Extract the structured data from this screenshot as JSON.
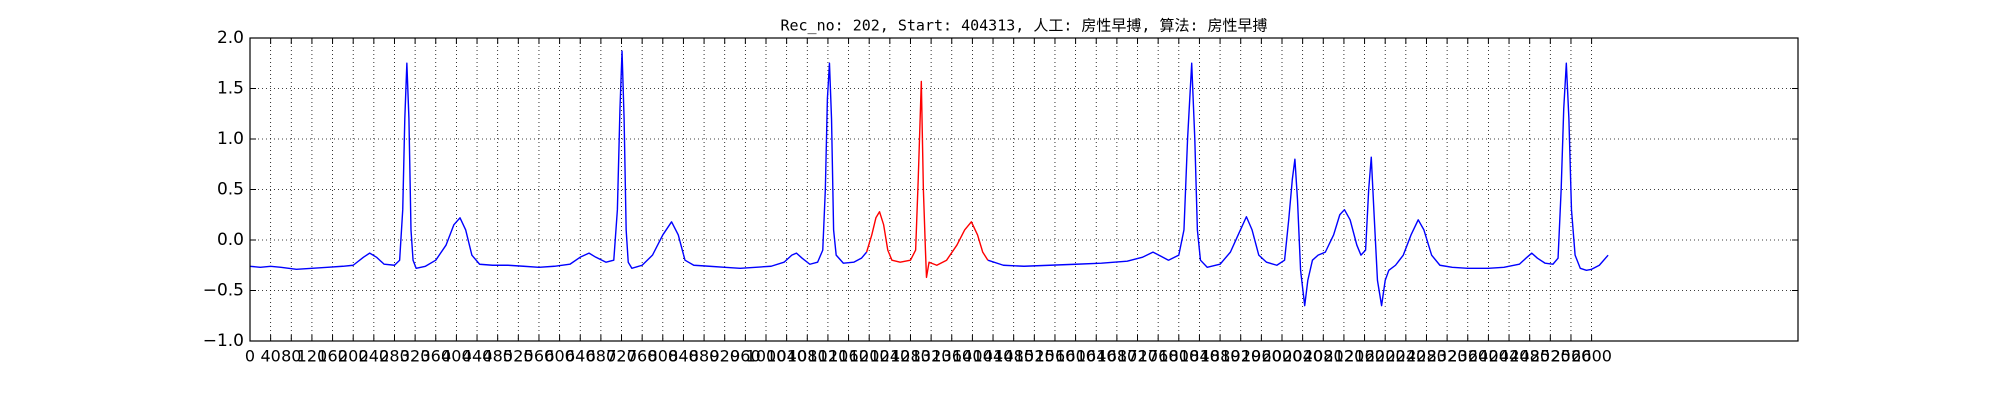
{
  "chart_data": {
    "type": "line",
    "title": "Rec_no: 202, Start: 404313, 人工: 房性早搏, 算法: 房性早搏",
    "xlim": [
      0,
      3000
    ],
    "ylim": [
      -1,
      2
    ],
    "xticks": [
      0,
      40,
      80,
      120,
      160,
      200,
      240,
      280,
      320,
      360,
      400,
      440,
      480,
      520,
      560,
      600,
      640,
      680,
      720,
      760,
      800,
      840,
      880,
      920,
      960,
      1000,
      1040,
      1080,
      1120,
      1160,
      1200,
      1240,
      1280,
      1320,
      1360,
      1400,
      1440,
      1480,
      1520,
      1560,
      1600,
      1640,
      1680,
      1720,
      1760,
      1800,
      1840,
      1880,
      1920,
      1960,
      2000,
      2040,
      2080,
      2120,
      2160,
      2200,
      2240,
      2280,
      2320,
      2360,
      2400,
      2440,
      2480,
      2520,
      2560,
      2600
    ],
    "yticks": [
      {
        "value": -1,
        "label": "−1.0"
      },
      {
        "value": -0.5,
        "label": "−0.5"
      },
      {
        "value": 0,
        "label": "0.0"
      },
      0.5,
      {
        "value": 1,
        "label": "1.0"
      },
      1.5,
      {
        "value": 2,
        "label": "2.0"
      }
    ],
    "grid": true,
    "series": [
      {
        "color": "#0000ff",
        "x": [
          0,
          20,
          40,
          60,
          90,
          120,
          150,
          180,
          200,
          220,
          232,
          245,
          260,
          280,
          290,
          296,
          300,
          304,
          308,
          312,
          316,
          322,
          340,
          360,
          380,
          395,
          407,
          418,
          430,
          445,
          470,
          500,
          530,
          560,
          590,
          620,
          640,
          657,
          670,
          690,
          705,
          712,
          717,
          721,
          725,
          729,
          733,
          740,
          760,
          780,
          800,
          817,
          830,
          843,
          860,
          890,
          920,
          950,
          980,
          1010,
          1035,
          1050,
          1059,
          1070,
          1085,
          1100,
          1110,
          1115,
          1119,
          1123,
          1127,
          1131,
          1136,
          1150,
          1170,
          1185,
          1195,
          1300,
          1430,
          1460,
          1500,
          1550,
          1600,
          1650,
          1700,
          1730,
          1750,
          1765,
          1780,
          1800,
          1810,
          1817,
          1825,
          1831,
          1836,
          1842,
          1855,
          1880,
          1900,
          1915,
          1931,
          1942,
          1955,
          1970,
          1990,
          2005,
          2013,
          2020,
          2025,
          2030,
          2036,
          2044,
          2050,
          2059,
          2070,
          2084,
          2100,
          2112,
          2121,
          2132,
          2145,
          2153,
          2162,
          2168,
          2173,
          2178,
          2185,
          2193,
          2200,
          2207,
          2220,
          2235,
          2250,
          2264,
          2275,
          2290,
          2306,
          2330,
          2360,
          2400,
          2430,
          2460,
          2475,
          2484,
          2495,
          2510,
          2525,
          2535,
          2541,
          2546,
          2551,
          2556,
          2561,
          2568,
          2578,
          2590,
          2600,
          2615,
          2632
        ],
        "values": [
          -0.26,
          -0.27,
          -0.26,
          -0.27,
          -0.29,
          -0.28,
          -0.27,
          -0.26,
          -0.25,
          -0.17,
          -0.13,
          -0.17,
          -0.24,
          -0.25,
          -0.2,
          0.3,
          1.2,
          1.75,
          1.2,
          0.1,
          -0.2,
          -0.28,
          -0.26,
          -0.2,
          -0.05,
          0.15,
          0.22,
          0.1,
          -0.15,
          -0.24,
          -0.25,
          -0.25,
          -0.26,
          -0.27,
          -0.26,
          -0.24,
          -0.17,
          -0.13,
          -0.17,
          -0.22,
          -0.2,
          0.3,
          1.3,
          1.87,
          1.2,
          0.1,
          -0.22,
          -0.28,
          -0.25,
          -0.15,
          0.05,
          0.18,
          0.05,
          -0.2,
          -0.25,
          -0.26,
          -0.27,
          -0.28,
          -0.27,
          -0.26,
          -0.22,
          -0.15,
          -0.13,
          -0.18,
          -0.24,
          -0.22,
          -0.1,
          0.5,
          1.4,
          1.75,
          1.2,
          0.1,
          -0.15,
          -0.23,
          -0.22,
          -0.18,
          -0.12,
          null,
          -0.2,
          -0.25,
          -0.26,
          -0.25,
          -0.24,
          -0.23,
          -0.21,
          -0.17,
          -0.12,
          -0.16,
          -0.2,
          -0.15,
          0.1,
          1.0,
          1.75,
          1.0,
          0.1,
          -0.2,
          -0.27,
          -0.24,
          -0.12,
          0.05,
          0.23,
          0.1,
          -0.15,
          -0.22,
          -0.25,
          -0.2,
          0.2,
          0.6,
          0.8,
          0.4,
          -0.3,
          -0.65,
          -0.4,
          -0.2,
          -0.15,
          -0.12,
          0.05,
          0.25,
          0.3,
          0.2,
          -0.05,
          -0.15,
          -0.1,
          0.5,
          0.82,
          0.3,
          -0.4,
          -0.65,
          -0.4,
          -0.3,
          -0.25,
          -0.15,
          0.05,
          0.2,
          0.1,
          -0.15,
          -0.25,
          -0.27,
          -0.28,
          -0.28,
          -0.27,
          -0.24,
          -0.17,
          -0.13,
          -0.18,
          -0.23,
          -0.24,
          -0.18,
          0.5,
          1.3,
          1.75,
          1.2,
          0.3,
          -0.15,
          -0.28,
          -0.3,
          -0.29,
          -0.25,
          -0.15
        ]
      },
      {
        "color": "#ff0000",
        "x": [
          1195,
          1205,
          1213,
          1220,
          1228,
          1236,
          1244,
          1260,
          1280,
          1290,
          1295,
          1301,
          1305,
          1309,
          1311,
          1316,
          1331,
          1350,
          1370,
          1385,
          1398,
          1410,
          1420,
          1430
        ],
        "values": [
          -0.12,
          0.05,
          0.22,
          0.28,
          0.15,
          -0.1,
          -0.2,
          -0.22,
          -0.2,
          -0.1,
          0.6,
          1.57,
          0.5,
          -0.1,
          -0.37,
          -0.22,
          -0.25,
          -0.2,
          -0.05,
          0.1,
          0.18,
          0.05,
          -0.12,
          -0.2
        ]
      }
    ]
  }
}
